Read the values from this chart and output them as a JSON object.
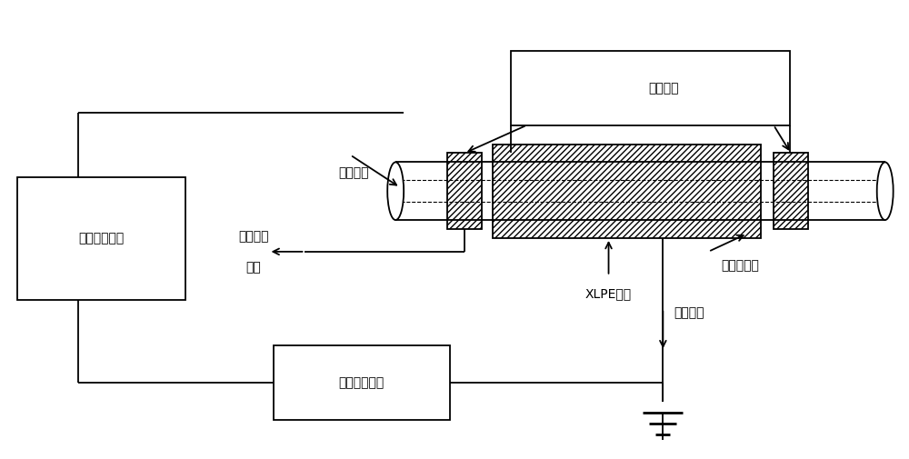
{
  "bg_color": "#ffffff",
  "line_color": "#000000",
  "font_size": 10,
  "labels": {
    "fang_xie_lou_huan": "防泄漏环",
    "dao_ti_xian_xin": "导体线芯",
    "yan_mian_xie_lou_line1": "沿面泄漏",
    "yan_mian_xie_lou_line2": "电流",
    "XLPE_jue_yuan": "XLPE绣缘",
    "jin_shu_ping_bi_ceng": "金属屏蔽层",
    "ji_hua_dian_liu": "极化电流",
    "zhi_liu_gao_ya": "直流高压电源",
    "dian_liu_ce_liang": "电流测量模块"
  }
}
